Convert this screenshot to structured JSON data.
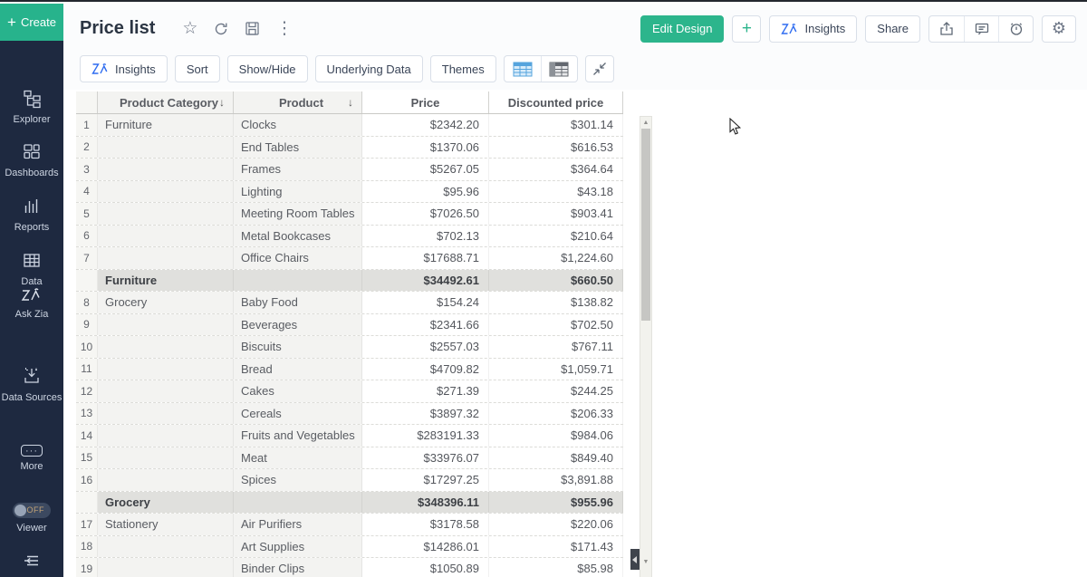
{
  "sidebar": {
    "create_label": "Create",
    "items": [
      {
        "label": "Explorer"
      },
      {
        "label": "Dashboards"
      },
      {
        "label": "Reports"
      },
      {
        "label": "Data"
      },
      {
        "label": "Ask Zia"
      },
      {
        "label": "Data Sources"
      },
      {
        "label": "More"
      },
      {
        "label": "Viewer",
        "toggle": "OFF"
      }
    ]
  },
  "header": {
    "title": "Price list",
    "edit_design": "Edit Design",
    "insights": "Insights",
    "share": "Share"
  },
  "toolbar": {
    "insights": "Insights",
    "sort": "Sort",
    "show_hide": "Show/Hide",
    "underlying_data": "Underlying Data",
    "themes": "Themes"
  },
  "icons": {
    "star": "☆",
    "kebab": "⋮",
    "gear": "⚙",
    "more_dots": "···",
    "sort_desc": "↓",
    "scroll_up": "▲",
    "scroll_down": "▼"
  },
  "colors": {
    "accent_teal": "#2cb58c",
    "zia_blue": "#2e6cf0",
    "sidebar_bg": "#1e2940",
    "header_row_bg": "#e9e9e9",
    "subtotal_bg": "#e0e0dd"
  },
  "table": {
    "columns": [
      "Product Category",
      "Product",
      "Price",
      "Discounted price"
    ],
    "rows": [
      {
        "n": "1",
        "category": "Furniture",
        "product": "Clocks",
        "price": "$2342.20",
        "discounted": "$301.14"
      },
      {
        "n": "2",
        "category": "",
        "product": "End Tables",
        "price": "$1370.06",
        "discounted": "$616.53"
      },
      {
        "n": "3",
        "category": "",
        "product": "Frames",
        "price": "$5267.05",
        "discounted": "$364.64"
      },
      {
        "n": "4",
        "category": "",
        "product": "Lighting",
        "price": "$95.96",
        "discounted": "$43.18"
      },
      {
        "n": "5",
        "category": "",
        "product": "Meeting Room Tables",
        "price": "$7026.50",
        "discounted": "$903.41"
      },
      {
        "n": "6",
        "category": "",
        "product": "Metal Bookcases",
        "price": "$702.13",
        "discounted": "$210.64"
      },
      {
        "n": "7",
        "category": "",
        "product": "Office Chairs",
        "price": "$17688.71",
        "discounted": "$1,224.60"
      },
      {
        "type": "subtotal",
        "n": "",
        "category": "Furniture",
        "product": "",
        "price": "$34492.61",
        "discounted": "$660.50"
      },
      {
        "n": "8",
        "category": "Grocery",
        "product": "Baby Food",
        "price": "$154.24",
        "discounted": "$138.82"
      },
      {
        "n": "9",
        "category": "",
        "product": "Beverages",
        "price": "$2341.66",
        "discounted": "$702.50"
      },
      {
        "n": "10",
        "category": "",
        "product": "Biscuits",
        "price": "$2557.03",
        "discounted": "$767.11"
      },
      {
        "n": "11",
        "category": "",
        "product": "Bread",
        "price": "$4709.82",
        "discounted": "$1,059.71"
      },
      {
        "n": "12",
        "category": "",
        "product": "Cakes",
        "price": "$271.39",
        "discounted": "$244.25"
      },
      {
        "n": "13",
        "category": "",
        "product": "Cereals",
        "price": "$3897.32",
        "discounted": "$206.33"
      },
      {
        "n": "14",
        "category": "",
        "product": "Fruits and Vegetables",
        "price": "$283191.33",
        "discounted": "$984.06"
      },
      {
        "n": "15",
        "category": "",
        "product": "Meat",
        "price": "$33976.07",
        "discounted": "$849.40"
      },
      {
        "n": "16",
        "category": "",
        "product": "Spices",
        "price": "$17297.25",
        "discounted": "$3,891.88"
      },
      {
        "type": "subtotal",
        "n": "",
        "category": "Grocery",
        "product": "",
        "price": "$348396.11",
        "discounted": "$955.96"
      },
      {
        "n": "17",
        "category": "Stationery",
        "product": "Air Purifiers",
        "price": "$3178.58",
        "discounted": "$220.06"
      },
      {
        "n": "18",
        "category": "",
        "product": "Art Supplies",
        "price": "$14286.01",
        "discounted": "$171.43"
      },
      {
        "n": "19",
        "category": "",
        "product": "Binder Clips",
        "price": "$1050.89",
        "discounted": "$85.98"
      }
    ]
  }
}
